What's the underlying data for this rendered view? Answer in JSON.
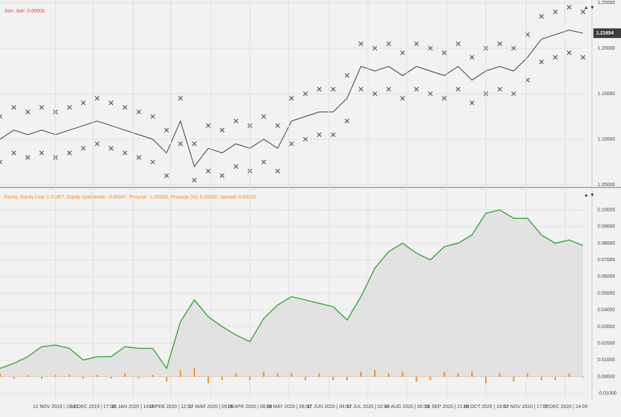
{
  "chart_data": [
    {
      "type": "line",
      "legend_text": "Join: Join: 0.00000",
      "legend_color": "#e53935",
      "x": [
        0,
        1,
        2,
        3,
        4,
        5,
        6,
        7,
        8,
        9,
        10,
        11,
        12,
        13,
        14,
        15,
        16,
        17,
        18,
        19,
        20,
        21,
        22,
        23,
        24,
        25,
        26,
        27,
        28,
        29,
        30,
        31,
        32,
        33,
        34,
        35,
        36,
        37,
        38,
        39,
        40,
        41,
        42
      ],
      "xlim": [
        0,
        42
      ],
      "ylim": [
        1.05,
        1.25
      ],
      "yticks": [
        {
          "value": 1.05,
          "label": "1.05000"
        },
        {
          "value": 1.1,
          "label": "1.10000"
        },
        {
          "value": 1.15,
          "label": "1.15000"
        },
        {
          "value": 1.2,
          "label": "1.20000"
        },
        {
          "value": 1.25,
          "label": "1.25000"
        }
      ],
      "grid": true,
      "last_value": 1.21654,
      "series": [
        {
          "kind": "line",
          "color": "#333333",
          "values": [
            1.1,
            1.11,
            1.105,
            1.11,
            1.105,
            1.11,
            1.115,
            1.12,
            1.115,
            1.11,
            1.105,
            1.1,
            1.085,
            1.12,
            1.07,
            1.09,
            1.085,
            1.095,
            1.09,
            1.1,
            1.09,
            1.12,
            1.125,
            1.13,
            1.13,
            1.145,
            1.18,
            1.175,
            1.18,
            1.17,
            1.18,
            1.175,
            1.17,
            1.18,
            1.165,
            1.175,
            1.18,
            1.175,
            1.19,
            1.21,
            1.215,
            1.22,
            1.21654
          ]
        },
        {
          "kind": "cross",
          "color": "#555555",
          "values": [
            1.125,
            1.135,
            1.13,
            1.135,
            1.13,
            1.135,
            1.14,
            1.145,
            1.14,
            1.135,
            1.13,
            1.125,
            1.11,
            1.145,
            1.095,
            1.115,
            1.11,
            1.12,
            1.115,
            1.125,
            1.115,
            1.145,
            1.15,
            1.155,
            1.155,
            1.17,
            1.205,
            1.2,
            1.205,
            1.195,
            1.205,
            1.2,
            1.195,
            1.205,
            1.19,
            1.2,
            1.205,
            1.2,
            1.215,
            1.235,
            1.24,
            1.245,
            1.24
          ]
        },
        {
          "kind": "cross",
          "color": "#555555",
          "values": [
            1.075,
            1.085,
            1.08,
            1.085,
            1.08,
            1.085,
            1.09,
            1.095,
            1.09,
            1.085,
            1.08,
            1.075,
            1.06,
            1.095,
            1.055,
            1.065,
            1.06,
            1.07,
            1.065,
            1.075,
            1.065,
            1.095,
            1.1,
            1.105,
            1.105,
            1.12,
            1.155,
            1.15,
            1.155,
            1.145,
            1.155,
            1.15,
            1.145,
            1.155,
            1.14,
            1.15,
            1.155,
            1.15,
            1.165,
            1.185,
            1.19,
            1.195,
            1.19
          ]
        }
      ]
    },
    {
      "type": "line",
      "legend_text": "Equity: Equity Line: 0.07857, Equity zysk/strata: -0.00047, Pozycje: -1.00000, Prowizje [%]: 0.00000, Spread: 0.00000",
      "legend_color": "#ef8a1e",
      "x": [
        0,
        1,
        2,
        3,
        4,
        5,
        6,
        7,
        8,
        9,
        10,
        11,
        12,
        13,
        14,
        15,
        16,
        17,
        18,
        19,
        20,
        21,
        22,
        23,
        24,
        25,
        26,
        27,
        28,
        29,
        30,
        31,
        32,
        33,
        34,
        35,
        36,
        37,
        38,
        39,
        40,
        41,
        42
      ],
      "xlim": [
        0,
        42
      ],
      "ylim": [
        -0.013,
        0.106
      ],
      "yticks": [
        {
          "value": -0.01,
          "label": "-0.01000"
        },
        {
          "value": 0,
          "label": "0.00000"
        },
        {
          "value": 0.01,
          "label": "0.01000"
        },
        {
          "value": 0.02,
          "label": "0.02000"
        },
        {
          "value": 0.03,
          "label": "0.03000"
        },
        {
          "value": 0.04,
          "label": "0.04000"
        },
        {
          "value": 0.05,
          "label": "0.05000"
        },
        {
          "value": 0.06,
          "label": "0.06000"
        },
        {
          "value": 0.07,
          "label": "0.07000"
        },
        {
          "value": 0.08,
          "label": "0.08000"
        },
        {
          "value": 0.09,
          "label": "0.09000"
        },
        {
          "value": 0.1,
          "label": "0.10000"
        }
      ],
      "xticks": [
        {
          "value": 4,
          "label": "12 NOV 2019 | 19:00"
        },
        {
          "value": 6.7,
          "label": "12 DEC 2019 | 17:00"
        },
        {
          "value": 9.6,
          "label": "15 JAN 2020 | 14:00"
        },
        {
          "value": 12.3,
          "label": "14 FEB 2020 | 12:00"
        },
        {
          "value": 15.2,
          "label": "17 MAR 2020 | 09:00"
        },
        {
          "value": 18,
          "label": "16 APR 2020 | 08:00"
        },
        {
          "value": 20.8,
          "label": "18 MAY 2020 | 06:00"
        },
        {
          "value": 23.7,
          "label": "17 JUN 2020 | 04:00"
        },
        {
          "value": 26.5,
          "label": "17 JUL 2020 | 02:00"
        },
        {
          "value": 29.3,
          "label": "18 AUG 2020 | 00:00"
        },
        {
          "value": 32.2,
          "label": "16 SEP 2020 | 21:00"
        },
        {
          "value": 35,
          "label": "16 OCT 2020 | 19:00"
        },
        {
          "value": 37.9,
          "label": "17 NOV 2020 | 17:00"
        },
        {
          "value": 40.7,
          "label": "17 DEC 2020 | 14:00"
        }
      ],
      "grid": true,
      "series": [
        {
          "kind": "area",
          "color": "#3aa63a",
          "values": [
            0.005,
            0.008,
            0.012,
            0.018,
            0.019,
            0.017,
            0.01,
            0.012,
            0.012,
            0.018,
            0.017,
            0.017,
            0.005,
            0.033,
            0.046,
            0.036,
            0.03,
            0.025,
            0.021,
            0.035,
            0.043,
            0.048,
            0.046,
            0.044,
            0.042,
            0.034,
            0.048,
            0.065,
            0.075,
            0.08,
            0.074,
            0.07,
            0.078,
            0.08,
            0.085,
            0.098,
            0.1,
            0.095,
            0.095,
            0.085,
            0.08,
            0.082,
            0.0786
          ]
        },
        {
          "kind": "bar",
          "color": "#ef8a1e",
          "values": [
            0.002,
            -0.001,
            0.001,
            -0.001,
            0.001,
            0.001,
            -0.001,
            0.001,
            -0.001,
            0.002,
            -0.001,
            0.001,
            -0.003,
            0.004,
            0.005,
            -0.004,
            -0.002,
            0.002,
            -0.002,
            0.003,
            0.002,
            0.002,
            -0.002,
            0.002,
            -0.002,
            -0.002,
            0.003,
            0.004,
            0.002,
            0.003,
            -0.003,
            -0.002,
            0.003,
            0.002,
            0.003,
            -0.004,
            0.002,
            -0.003,
            0.002,
            -0.002,
            -0.002,
            0.002,
            -0.0005
          ]
        }
      ]
    }
  ]
}
